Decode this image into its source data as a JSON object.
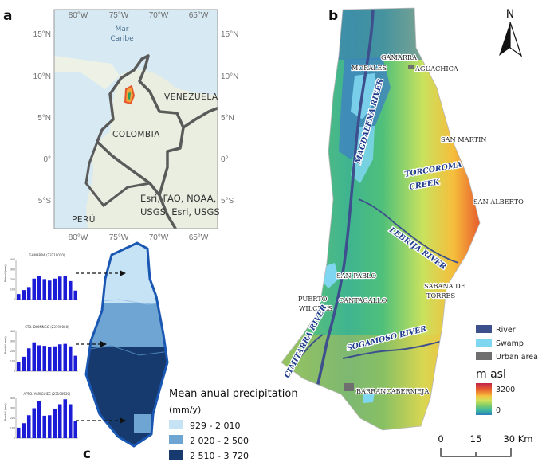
{
  "panels": {
    "a": "a",
    "b": "b",
    "c": "c"
  },
  "inset_map": {
    "lon_ticks": [
      "80°W",
      "75°W",
      "70°W",
      "65°W"
    ],
    "lat_ticks": [
      "15°N",
      "10°N",
      "5°N",
      "0°",
      "5°S"
    ],
    "sea_label_line1": "Mar",
    "sea_label_line2": "Caribe",
    "country_labels": [
      "VENEZUELA",
      "COLOMBIA",
      "PERÚ"
    ],
    "credit_line1": "Esri, FAO, NOAA,",
    "credit_line2": "USGS, Esri, USGS",
    "colors": {
      "land": "#e9eee0",
      "sea": "#d7e9f3",
      "border": "#5a5a5a",
      "study_area": "#e4572e"
    }
  },
  "elevation_map": {
    "towns": [
      "GAMARRA",
      "AGUACHICA",
      "MORALES",
      "SAN MARTIN",
      "SAN ALBERTO",
      "SAN PABLO",
      "SABANA DE",
      "TORRES",
      "PUERTO",
      "WILCHES",
      "CANTAGALLO",
      "BARRANCABERMEJA"
    ],
    "waterways": [
      "MAGDALENA RIVER",
      "TORCOROMA CREEK",
      "LEBRIJA RIVER",
      "SOGAMOSO RIVER",
      "CIMITARRA RIVER"
    ],
    "north_label": "N",
    "legend": {
      "items": [
        {
          "label": "River",
          "color": "#3e4f8e"
        },
        {
          "label": "Swamp",
          "color": "#7fd6f0"
        },
        {
          "label": "Urban area",
          "color": "#6f6f6f"
        }
      ],
      "elevation_title": "m asl",
      "elevation_max": "3200",
      "elevation_min": "0",
      "ramp_colors": [
        "#c2224a",
        "#e8612e",
        "#f6c03d",
        "#cfe35c",
        "#7fcb66",
        "#3fb8a0",
        "#2b7fb8"
      ]
    },
    "scale_bar": {
      "labels": [
        "0",
        "15",
        "30 Km"
      ]
    }
  },
  "precipitation": {
    "stations": [
      {
        "title": "GAMARRA (23210010)",
        "ylabel": "Rainfall (mm)",
        "values": [
          55,
          95,
          125,
          210,
          240,
          205,
          190,
          210,
          230,
          240,
          185,
          90
        ]
      },
      {
        "title": "STO. DOMINGO (23190060)",
        "ylabel": "Rainfall (mm)",
        "values": [
          95,
          145,
          230,
          290,
          260,
          255,
          240,
          250,
          270,
          275,
          250,
          155
        ]
      },
      {
        "title": "APTO. YARIGUIES (23190530)",
        "ylabel": "Rainfall (mm)",
        "values": [
          105,
          150,
          230,
          300,
          370,
          225,
          230,
          290,
          340,
          390,
          340,
          175
        ]
      }
    ],
    "mini_yticks": [
      "400",
      "300",
      "200",
      "100",
      "0"
    ],
    "legend_title": "Mean anual precipitation",
    "legend_unit": "(mm/y)",
    "classes": [
      {
        "label": "929 - 2 010",
        "color": "#c6e2f5"
      },
      {
        "label": "2 020 - 2 500",
        "color": "#6fa5d2"
      },
      {
        "label": "2 510 - 3 720",
        "color": "#163a6e"
      }
    ],
    "boundary_color": "#1a57b2",
    "bar_color": "#1c1cd6"
  }
}
